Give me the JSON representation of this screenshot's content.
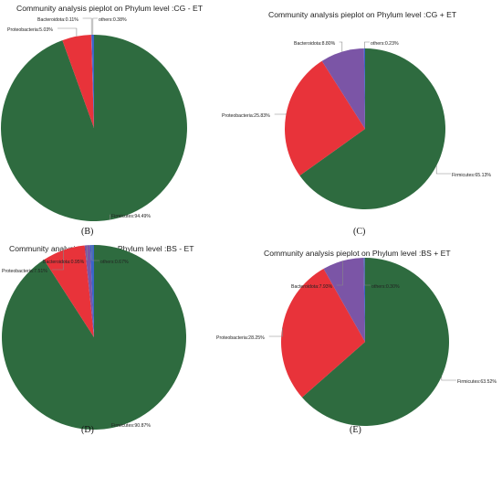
{
  "chart_data": [
    {
      "type": "pie",
      "title": "Community analysis pieplot on Phylum level :CG - ET",
      "panel_label": "(B)",
      "slices": [
        {
          "name": "Firmicutes",
          "value": 94.49,
          "label": "Firmicutes:94.49%",
          "color": "#2e6b3f"
        },
        {
          "name": "Proteobacteria",
          "value": 5.03,
          "label": "Proteobacteria:5.03%",
          "color": "#e8333a"
        },
        {
          "name": "Bacteroidota",
          "value": 0.11,
          "label": "Bacteroidota:0.11%",
          "color": "#7b55a6"
        },
        {
          "name": "others",
          "value": 0.38,
          "label": "others:0.38%",
          "color": "#3a64c8"
        }
      ]
    },
    {
      "type": "pie",
      "title": "Community analysis pieplot on Phylum level :CG + ET",
      "panel_label": "(C)",
      "slices": [
        {
          "name": "Firmicutes",
          "value": 65.13,
          "label": "Firmicutes:65.13%",
          "color": "#2e6b3f"
        },
        {
          "name": "Proteobacteria",
          "value": 25.83,
          "label": "Proteobacteria:25.83%",
          "color": "#e8333a"
        },
        {
          "name": "Bacteroidota",
          "value": 8.8,
          "label": "Bacteroidota:8.80%",
          "color": "#7b55a6"
        },
        {
          "name": "others",
          "value": 0.23,
          "label": "others:0.23%",
          "color": "#3a64c8"
        }
      ]
    },
    {
      "type": "pie",
      "title": "Community analysis pieplot on Phylum level :BS - ET",
      "panel_label": "(D)",
      "slices": [
        {
          "name": "Firmicutes",
          "value": 90.87,
          "label": "Firmicutes:90.87%",
          "color": "#2e6b3f"
        },
        {
          "name": "Proteobacteria",
          "value": 7.51,
          "label": "Proteobacteria:7.51%",
          "color": "#e8333a"
        },
        {
          "name": "Bacteroidota",
          "value": 0.95,
          "label": "Bacteroidota:0.95%",
          "color": "#7b55a6"
        },
        {
          "name": "others",
          "value": 0.67,
          "label": "others:0.67%",
          "color": "#3a64c8"
        }
      ]
    },
    {
      "type": "pie",
      "title": "Community analysis pieplot on Phylum level :BS + ET",
      "panel_label": "(E)",
      "slices": [
        {
          "name": "Firmicutes",
          "value": 63.52,
          "label": "Firmicutes:63.52%",
          "color": "#2e6b3f"
        },
        {
          "name": "Proteobacteria",
          "value": 28.25,
          "label": "Proteobacteria:28.25%",
          "color": "#e8333a"
        },
        {
          "name": "Bacteroidota",
          "value": 7.93,
          "label": "Bacteroidota:7.93%",
          "color": "#7b55a6"
        },
        {
          "name": "others",
          "value": 0.3,
          "label": "others:0.30%",
          "color": "#3a64c8"
        }
      ]
    }
  ]
}
